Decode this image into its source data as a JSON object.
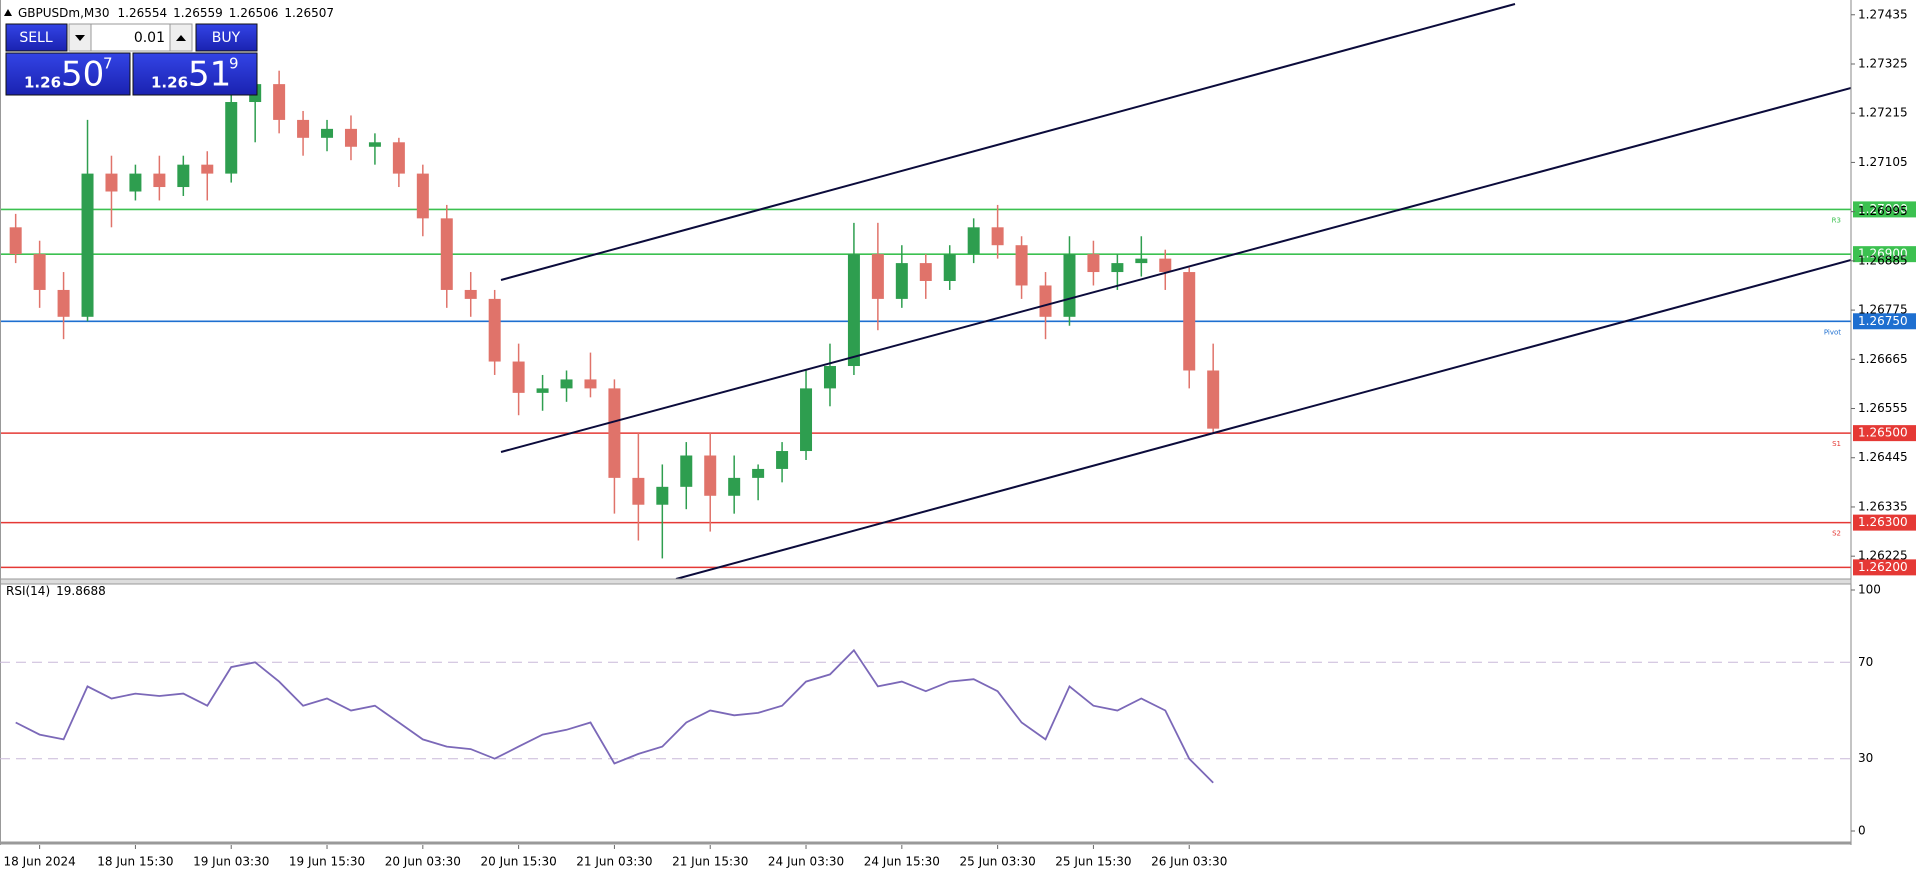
{
  "header": {
    "symbol": "GBPUSDm,M30",
    "quote": [
      1.26554,
      1.26559,
      1.26506,
      1.26507
    ]
  },
  "trade_panel": {
    "sell": "SELL",
    "buy": "BUY",
    "lot": "0.01",
    "bid": {
      "big": "1.26",
      "main": "50",
      "pip": "7"
    },
    "ask": {
      "big": "1.26",
      "main": "51",
      "pip": "9"
    }
  },
  "chart_data": [
    {
      "type": "candlestick",
      "up_color": "#2e9e4f",
      "down_color": "#e0736a",
      "x": [
        null,
        "18 Jun 2024",
        null,
        null,
        null,
        "18 Jun 15:30",
        null,
        null,
        null,
        "19 Jun 03:30",
        null,
        null,
        null,
        "19 Jun 15:30",
        null,
        null,
        null,
        "20 Jun 03:30",
        null,
        null,
        null,
        "20 Jun 15:30",
        null,
        null,
        null,
        "21 Jun 03:30",
        null,
        null,
        null,
        "21 Jun 15:30",
        null,
        null,
        null,
        "24 Jun 03:30",
        null,
        null,
        null,
        "24 Jun 15:30",
        null,
        null,
        null,
        "25 Jun 03:30",
        null,
        null,
        null,
        "25 Jun 15:30",
        null,
        null,
        null,
        "26 Jun 03:30",
        null
      ],
      "open": [
        1.2696,
        1.269,
        1.2682,
        1.2676,
        1.2708,
        1.2704,
        1.2708,
        1.2705,
        1.271,
        1.2708,
        1.2724,
        1.2728,
        1.272,
        1.2716,
        1.2718,
        1.2714,
        1.2715,
        1.2708,
        1.2698,
        1.2682,
        1.268,
        1.2666,
        1.2659,
        1.266,
        1.2662,
        1.266,
        1.264,
        1.2634,
        1.2638,
        1.2645,
        1.2636,
        1.264,
        1.2642,
        1.2646,
        1.266,
        1.2665,
        1.269,
        1.268,
        1.2688,
        1.2684,
        1.269,
        1.2696,
        1.2692,
        1.2683,
        1.2676,
        1.269,
        1.2686,
        1.2688,
        1.2689,
        1.2686,
        1.2664
      ],
      "high": [
        1.2699,
        1.2693,
        1.2686,
        1.272,
        1.2712,
        1.271,
        1.2712,
        1.2712,
        1.2713,
        1.2727,
        1.2733,
        1.2731,
        1.2722,
        1.272,
        1.2721,
        1.2717,
        1.2716,
        1.271,
        1.2701,
        1.2686,
        1.2682,
        1.267,
        1.2663,
        1.2664,
        1.2668,
        1.2662,
        1.265,
        1.2643,
        1.2648,
        1.265,
        1.2645,
        1.2643,
        1.2648,
        1.2664,
        1.267,
        1.2697,
        1.2697,
        1.2692,
        1.269,
        1.2692,
        1.2698,
        1.2701,
        1.2694,
        1.2686,
        1.2694,
        1.2693,
        1.269,
        1.2694,
        1.2691,
        1.2687,
        1.267
      ],
      "low": [
        1.2688,
        1.2678,
        1.2671,
        1.2675,
        1.2696,
        1.2702,
        1.2702,
        1.2703,
        1.2702,
        1.2706,
        1.2715,
        1.2717,
        1.2712,
        1.2713,
        1.2711,
        1.271,
        1.2705,
        1.2694,
        1.2678,
        1.2676,
        1.2663,
        1.2654,
        1.2655,
        1.2657,
        1.2658,
        1.2632,
        1.2626,
        1.2622,
        1.2633,
        1.2628,
        1.2632,
        1.2635,
        1.2639,
        1.2644,
        1.2656,
        1.2663,
        1.2673,
        1.2678,
        1.268,
        1.2682,
        1.2688,
        1.2689,
        1.268,
        1.2671,
        1.2674,
        1.2683,
        1.2682,
        1.2685,
        1.2682,
        1.266,
        1.265
      ],
      "close": [
        1.269,
        1.2682,
        1.2676,
        1.2708,
        1.2704,
        1.2708,
        1.2705,
        1.271,
        1.2708,
        1.2724,
        1.2728,
        1.272,
        1.2716,
        1.2718,
        1.2714,
        1.2715,
        1.2708,
        1.2698,
        1.2682,
        1.268,
        1.2666,
        1.2659,
        1.266,
        1.2662,
        1.266,
        1.264,
        1.2634,
        1.2638,
        1.2645,
        1.2636,
        1.264,
        1.2642,
        1.2646,
        1.266,
        1.2665,
        1.269,
        1.268,
        1.2688,
        1.2684,
        1.269,
        1.2696,
        1.2692,
        1.2683,
        1.2676,
        1.269,
        1.2686,
        1.2688,
        1.2689,
        1.2686,
        1.2664,
        1.2651
      ],
      "ylim": [
        1.26174,
        1.27468
      ],
      "yticks": [
        1.26225,
        1.26335,
        1.26445,
        1.26555,
        1.26665,
        1.26775,
        1.26885,
        1.26995,
        1.27105,
        1.27215,
        1.27325,
        1.27435
      ],
      "levels": [
        {
          "value": 1.27,
          "label": "1.27000",
          "color": "#3cc150",
          "tag": "R3"
        },
        {
          "value": 1.269,
          "label": "1.26900",
          "color": "#3cc150"
        },
        {
          "value": 1.2675,
          "label": "1.26750",
          "color": "#1e6fd0",
          "tag": "Pivot"
        },
        {
          "value": 1.265,
          "label": "1.26500",
          "color": "#e53935",
          "tag": "S1"
        },
        {
          "value": 1.263,
          "label": "1.26300",
          "color": "#e53935",
          "tag": "S2"
        },
        {
          "value": 1.262,
          "label": "1.26200",
          "color": "#e53935"
        }
      ]
    },
    {
      "type": "line",
      "title": "RSI(14)",
      "current": 19.8688,
      "color": "#7b68b8",
      "values": [
        45,
        40,
        38,
        60,
        55,
        57,
        56,
        57,
        52,
        68,
        70,
        62,
        52,
        55,
        50,
        52,
        45,
        38,
        35,
        34,
        30,
        35,
        40,
        42,
        45,
        28,
        32,
        35,
        45,
        50,
        48,
        49,
        52,
        62,
        65,
        75,
        60,
        62,
        58,
        62,
        63,
        58,
        45,
        38,
        60,
        52,
        50,
        55,
        50,
        30,
        20
      ],
      "ylim": [
        0,
        100
      ],
      "yticks": [
        0,
        30,
        70,
        100
      ],
      "grid": "dashed"
    }
  ]
}
